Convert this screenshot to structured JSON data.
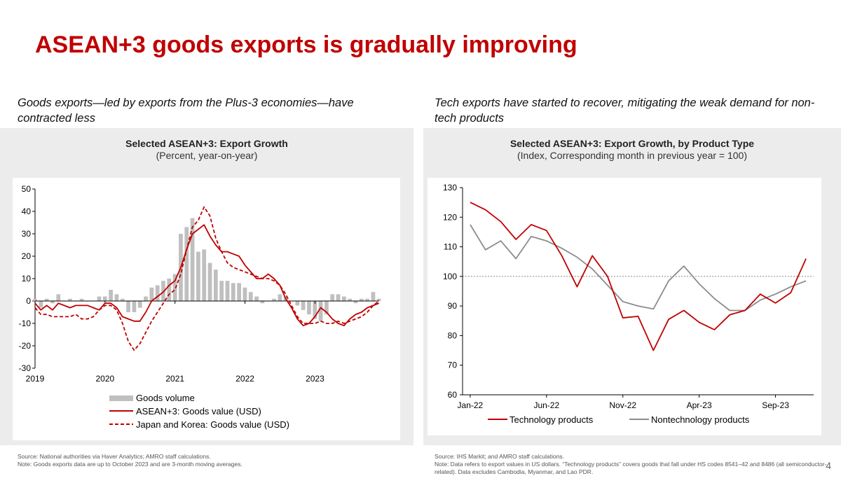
{
  "page": {
    "title": "ASEAN+3 goods exports is gradually improving",
    "subtitle_left": "Goods exports—led by exports from the Plus-3 economies—have contracted less",
    "subtitle_right": "Tech exports have started to recover, mitigating the weak demand for non-tech products",
    "source_left_1": "Source: National authorities via Haver Analytics; AMRO staff calculations.",
    "source_left_2": "Note: Goods exports data are up to October 2023 and are 3-month moving averages.",
    "source_right_1": "Source: IHS Markit; and AMRO staff calculations.",
    "source_right_2": "Note: Data refers to export values in US dollars. “Technology products” covers goods that fall under HS codes 8541–42 and 8486 (all semiconductor-related). Data excludes Cambodia, Myanmar, and Lao PDR.",
    "page_number": "4"
  },
  "colors": {
    "red": "#c00000",
    "gray_bar": "#bfbfbf",
    "gray_line": "#8c8c8c"
  },
  "chart_data": [
    {
      "type": "bar+line",
      "title": "Selected ASEAN+3: Export Growth",
      "subtitle": "(Percent, year-on-year)",
      "ylim": [
        -30,
        50
      ],
      "yticks": [
        -30,
        -20,
        -10,
        0,
        10,
        20,
        30,
        40,
        50
      ],
      "xlim": [
        2019,
        2023.917
      ],
      "xticks": [
        2019,
        2020,
        2021,
        2022,
        2023
      ],
      "legend_position": "bottom",
      "series": [
        {
          "name": "Goods volume",
          "kind": "bar",
          "start": 2019,
          "step": 0.0833,
          "values": [
            1,
            -3,
            1,
            -1,
            3,
            0,
            1,
            0,
            1,
            0,
            0,
            2,
            2,
            5,
            3,
            1,
            -5,
            -5,
            -3,
            2,
            6,
            7,
            9,
            10,
            12,
            30,
            33,
            37,
            22,
            23,
            17,
            14,
            9,
            9,
            8,
            8,
            6,
            4,
            2,
            -1,
            0,
            1,
            3,
            2,
            0,
            -2,
            -4,
            -6,
            -8,
            -9,
            -6,
            3,
            3,
            2,
            1,
            -1,
            1,
            1,
            4,
            1
          ]
        },
        {
          "name": "ASEAN+3: Goods value (USD)",
          "kind": "line",
          "style": "solid",
          "start": 2019,
          "step": 0.0833,
          "values": [
            -1,
            -4,
            -2,
            -4,
            -1,
            -2,
            -3,
            -2,
            -2,
            -2,
            -3,
            -4,
            -1,
            -1,
            -3,
            -7,
            -8,
            -9,
            -9,
            -5,
            0,
            2,
            4,
            7,
            9,
            15,
            23,
            30,
            32,
            34,
            29,
            25,
            22,
            22,
            21,
            20,
            16,
            13,
            10,
            10,
            12,
            10,
            7,
            1,
            -3,
            -8,
            -11,
            -10,
            -7,
            -3,
            -5,
            -8,
            -10,
            -11,
            -8,
            -6,
            -5,
            -3,
            -2,
            -1
          ]
        },
        {
          "name": "Japan and Korea: Goods value (USD)",
          "kind": "line",
          "style": "dashed",
          "start": 2019,
          "step": 0.0833,
          "values": [
            -3,
            -6,
            -6,
            -7,
            -7,
            -7,
            -7,
            -6,
            -8,
            -8,
            -7,
            -4,
            -2,
            -2,
            -4,
            -10,
            -18,
            -22,
            -19,
            -14,
            -9,
            -5,
            -1,
            3,
            5,
            12,
            23,
            33,
            36,
            42,
            38,
            28,
            22,
            17,
            15,
            14,
            13,
            12,
            11,
            10,
            10,
            9,
            7,
            3,
            -2,
            -7,
            -10,
            -10,
            -10,
            -9,
            -10,
            -10,
            -9,
            -10,
            -9,
            -8,
            -7,
            -5,
            -2,
            0
          ]
        }
      ]
    },
    {
      "type": "line",
      "title": "Selected ASEAN+3: Export Growth, by Product Type",
      "subtitle": "(Index, Corresponding month in previous year = 100)",
      "ylim": [
        60,
        130
      ],
      "yticks": [
        60,
        70,
        80,
        90,
        100,
        110,
        120,
        130
      ],
      "categories": [
        "Jan-22",
        "Feb-22",
        "Mar-22",
        "Apr-22",
        "May-22",
        "Jun-22",
        "Jul-22",
        "Aug-22",
        "Sep-22",
        "Oct-22",
        "Nov-22",
        "Dec-22",
        "Jan-23",
        "Feb-23",
        "Mar-23",
        "Apr-23",
        "May-23",
        "Jun-23",
        "Jul-23",
        "Aug-23",
        "Sep-23",
        "Oct-23",
        "Nov-23"
      ],
      "xticklabels": [
        "Jan-22",
        "Jun-22",
        "Nov-22",
        "Apr-23",
        "Sep-23"
      ],
      "reference_line": 100,
      "legend_position": "bottom",
      "series": [
        {
          "name": "Technology products",
          "values": [
            125,
            122.5,
            118.5,
            112.5,
            117.5,
            115.5,
            107,
            96.5,
            107,
            100,
            86,
            86.5,
            75,
            85.5,
            88.5,
            84.5,
            82,
            87,
            88.5,
            94,
            91,
            94.5,
            106
          ]
        },
        {
          "name": "Nontechnology products",
          "values": [
            117.5,
            109,
            112,
            106,
            113.5,
            112,
            109.5,
            106.5,
            102.5,
            97,
            91.5,
            90,
            89,
            98.5,
            103.5,
            97.5,
            92.5,
            88.5,
            88.5,
            92,
            94,
            96.5,
            98.5
          ]
        }
      ]
    }
  ]
}
